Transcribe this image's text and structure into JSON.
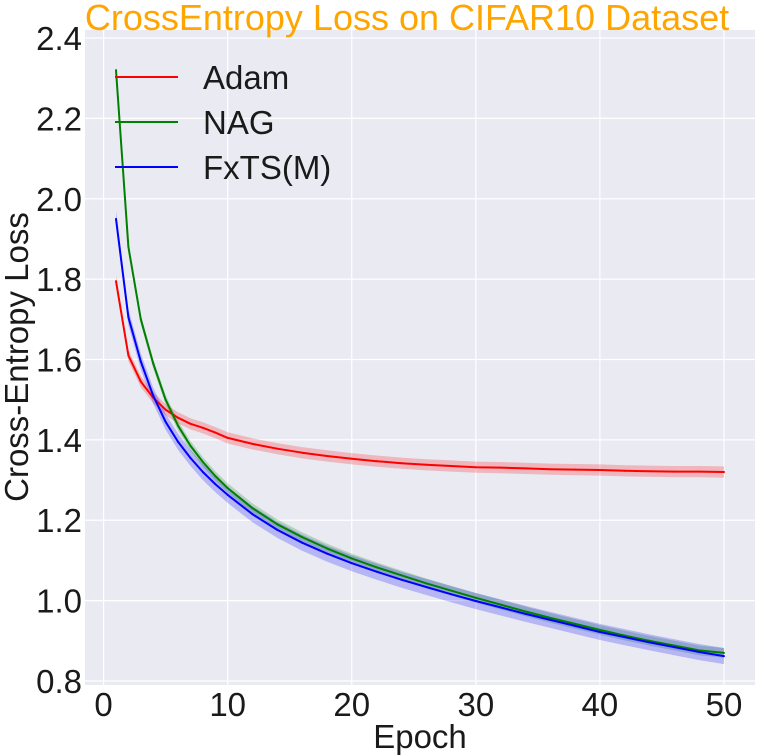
{
  "chart_data": {
    "type": "line",
    "title": "CrossEntropy Loss on CIFAR10 Dataset",
    "xlabel": "Epoch",
    "ylabel": "Cross-Entropy Loss",
    "xlim": [
      -1.5,
      52.5
    ],
    "ylim": [
      0.79,
      2.42
    ],
    "xticks": [
      0,
      10,
      20,
      30,
      40,
      50
    ],
    "yticks": [
      0.8,
      1.0,
      1.2,
      1.4,
      1.6,
      1.8,
      2.0,
      2.2,
      2.4
    ],
    "xtick_labels": [
      "0",
      "10",
      "20",
      "30",
      "40",
      "50"
    ],
    "ytick_labels": [
      "0.8",
      "1.0",
      "1.2",
      "1.4",
      "1.6",
      "1.8",
      "2.0",
      "2.2",
      "2.4"
    ],
    "grid": true,
    "legend_position": "top-left",
    "x": [
      1,
      2,
      3,
      4,
      5,
      6,
      7,
      8,
      9,
      10,
      12,
      14,
      16,
      18,
      20,
      22,
      24,
      26,
      28,
      30,
      32,
      34,
      36,
      38,
      40,
      42,
      44,
      46,
      48,
      50
    ],
    "series": [
      {
        "name": "Adam",
        "color": "#ff0000",
        "values": [
          1.795,
          1.61,
          1.545,
          1.505,
          1.475,
          1.455,
          1.44,
          1.43,
          1.418,
          1.405,
          1.39,
          1.378,
          1.368,
          1.36,
          1.353,
          1.347,
          1.342,
          1.338,
          1.335,
          1.332,
          1.331,
          1.329,
          1.327,
          1.326,
          1.325,
          1.323,
          1.322,
          1.321,
          1.321,
          1.32
        ],
        "band": 0.014
      },
      {
        "name": "NAG",
        "color": "#008000",
        "values": [
          2.32,
          1.88,
          1.7,
          1.59,
          1.5,
          1.435,
          1.385,
          1.345,
          1.31,
          1.28,
          1.23,
          1.19,
          1.158,
          1.13,
          1.105,
          1.083,
          1.063,
          1.043,
          1.025,
          1.007,
          0.99,
          0.973,
          0.957,
          0.942,
          0.927,
          0.913,
          0.9,
          0.888,
          0.876,
          0.87
        ],
        "band": 0.012
      },
      {
        "name": "FxTS(M)",
        "color": "#0000ff",
        "values": [
          1.95,
          1.705,
          1.595,
          1.51,
          1.445,
          1.395,
          1.355,
          1.32,
          1.29,
          1.263,
          1.215,
          1.176,
          1.144,
          1.117,
          1.093,
          1.072,
          1.052,
          1.034,
          1.016,
          0.999,
          0.983,
          0.967,
          0.952,
          0.937,
          0.922,
          0.909,
          0.896,
          0.884,
          0.872,
          0.862
        ],
        "band": 0.02
      }
    ]
  }
}
